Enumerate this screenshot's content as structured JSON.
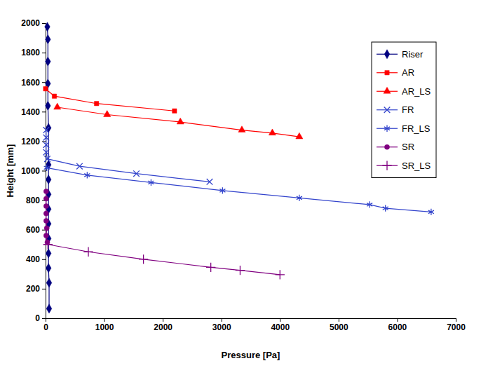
{
  "chart_data": {
    "type": "line",
    "x_label": "Pressure [Pa]",
    "y_label": "Height [mm]",
    "xlim": [
      0,
      7000
    ],
    "xticks": [
      0,
      1000,
      2000,
      3000,
      4000,
      5000,
      6000,
      7000
    ],
    "ylim": [
      0,
      2000
    ],
    "yticks": [
      0,
      200,
      400,
      600,
      800,
      1000,
      1200,
      1400,
      1600,
      1800,
      2000
    ],
    "grid": false,
    "legend": "top-right",
    "series": [
      {
        "name": "Riser",
        "color": "#000080",
        "marker": "diamond",
        "line_style": "solid",
        "x": [
          30,
          40,
          40,
          40,
          40,
          50,
          50,
          50,
          50,
          50,
          50,
          50,
          50,
          50,
          60,
          60
        ],
        "values": [
          1975,
          1890,
          1740,
          1590,
          1440,
          1290,
          1040,
          940,
          840,
          740,
          640,
          540,
          440,
          340,
          240,
          65
        ]
      },
      {
        "name": "AR",
        "color": "#ff0000",
        "marker": "square",
        "line_style": "solid",
        "x": [
          0,
          150,
          870,
          2200
        ],
        "values": [
          1555,
          1505,
          1455,
          1405
        ]
      },
      {
        "name": "AR_LS",
        "color": "#ff0000",
        "marker": "triangle",
        "line_style": "solid",
        "x": [
          200,
          1050,
          2300,
          3350,
          3870,
          4330
        ],
        "values": [
          1430,
          1380,
          1330,
          1275,
          1255,
          1230
        ]
      },
      {
        "name": "FR",
        "color": "#3344cc",
        "marker": "x",
        "line_style": "solid",
        "x": [
          10,
          10,
          10,
          10,
          30,
          580,
          1550,
          2800
        ],
        "values": [
          1275,
          1225,
          1175,
          1125,
          1080,
          1030,
          980,
          925
        ]
      },
      {
        "name": "FR_LS",
        "color": "#3344cc",
        "marker": "asterisk",
        "line_style": "solid",
        "x": [
          20,
          710,
          1800,
          3020,
          4330,
          5530,
          5800,
          6580
        ],
        "values": [
          1020,
          970,
          920,
          865,
          815,
          770,
          745,
          720
        ]
      },
      {
        "name": "SR",
        "color": "#800080",
        "marker": "circle",
        "line_style": "solid",
        "x": [
          10,
          10,
          10,
          10,
          10,
          20,
          10,
          30
        ],
        "values": [
          860,
          810,
          760,
          710,
          660,
          610,
          560,
          515
        ]
      },
      {
        "name": "SR_LS",
        "color": "#800080",
        "marker": "plus",
        "line_style": "solid",
        "x": [
          40,
          730,
          1670,
          2820,
          3320,
          4000
        ],
        "values": [
          500,
          450,
          400,
          345,
          325,
          295
        ]
      }
    ]
  }
}
